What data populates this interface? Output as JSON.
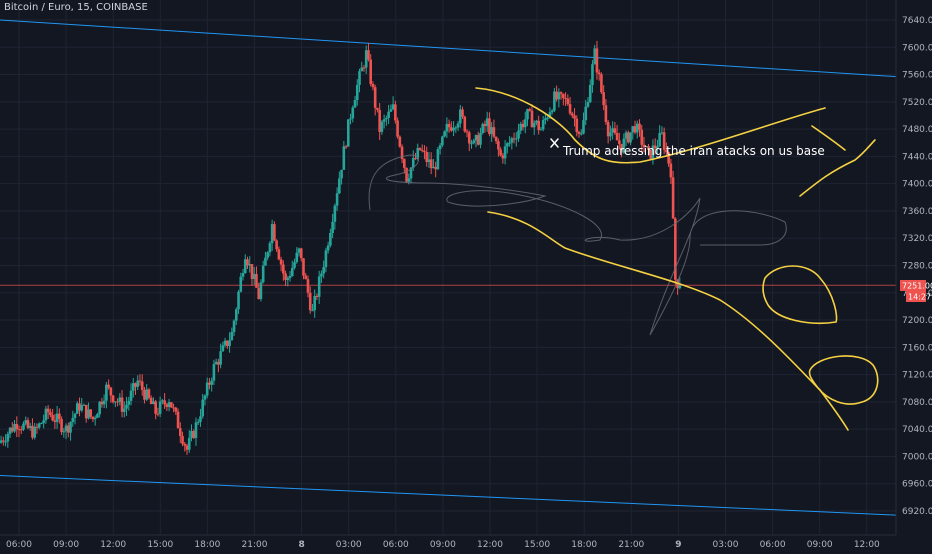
{
  "title": "Bitcoin / Euro, 15, COINBASE",
  "price_badge": {
    "value": "7251.00",
    "countdown": "14:27"
  },
  "annotation": "Trump adressing the iran atacks on us base",
  "colors": {
    "background": "#131722",
    "grid": "#1f2433",
    "up": "#26a69a",
    "down": "#ef5350",
    "trendline": "#2196f3",
    "drawing": "#f5d142",
    "sketch": "#6b6f7a",
    "price_line": "#ef5350"
  },
  "chart_data": {
    "type": "candlestick",
    "title": "Bitcoin / Euro, 15, COINBASE",
    "y_ticks": [
      6920,
      6960,
      7000,
      7040,
      7080,
      7120,
      7160,
      7200,
      7240,
      7280,
      7320,
      7360,
      7400,
      7440,
      7480,
      7520,
      7560,
      7600,
      7640
    ],
    "x_ticks": [
      "06:00",
      "09:00",
      "12:00",
      "15:00",
      "18:00",
      "21:00",
      "8",
      "03:00",
      "06:00",
      "09:00",
      "12:00",
      "15:00",
      "18:00",
      "21:00",
      "9",
      "03:00",
      "06:00",
      "09:00",
      "12:00"
    ],
    "ylim": [
      6905,
      7655
    ],
    "current_price": 7251,
    "candle_path": [
      [
        0,
        7020
      ],
      [
        8,
        7050
      ],
      [
        16,
        7035
      ],
      [
        22,
        7065
      ],
      [
        30,
        7040
      ],
      [
        36,
        7075
      ],
      [
        42,
        7055
      ],
      [
        48,
        7100
      ],
      [
        56,
        7070
      ],
      [
        62,
        7110
      ],
      [
        70,
        7065
      ],
      [
        76,
        7085
      ],
      [
        84,
        7010
      ],
      [
        88,
        7045
      ],
      [
        96,
        7130
      ],
      [
        104,
        7180
      ],
      [
        110,
        7300
      ],
      [
        116,
        7235
      ],
      [
        122,
        7340
      ],
      [
        128,
        7255
      ],
      [
        134,
        7300
      ],
      [
        140,
        7210
      ],
      [
        146,
        7300
      ],
      [
        152,
        7410
      ],
      [
        158,
        7520
      ],
      [
        164,
        7590
      ],
      [
        170,
        7480
      ],
      [
        176,
        7510
      ],
      [
        182,
        7410
      ],
      [
        188,
        7450
      ],
      [
        194,
        7420
      ],
      [
        200,
        7480
      ],
      [
        206,
        7500
      ],
      [
        212,
        7455
      ],
      [
        218,
        7490
      ],
      [
        224,
        7440
      ],
      [
        230,
        7470
      ],
      [
        236,
        7500
      ],
      [
        242,
        7480
      ],
      [
        248,
        7525
      ],
      [
        254,
        7520
      ],
      [
        260,
        7470
      ],
      [
        266,
        7590
      ],
      [
        272,
        7480
      ],
      [
        278,
        7455
      ],
      [
        284,
        7485
      ],
      [
        290,
        7440
      ],
      [
        296,
        7470
      ],
      [
        300,
        7420
      ],
      [
        302,
        7260
      ],
      [
        304,
        7251
      ]
    ]
  },
  "trendlines": [
    {
      "name": "upper-channel",
      "from": [
        0,
        7640
      ],
      "to": [
        400,
        7557
      ]
    },
    {
      "name": "lower-channel",
      "from": [
        0,
        6972
      ],
      "to": [
        400,
        6914
      ]
    }
  ]
}
